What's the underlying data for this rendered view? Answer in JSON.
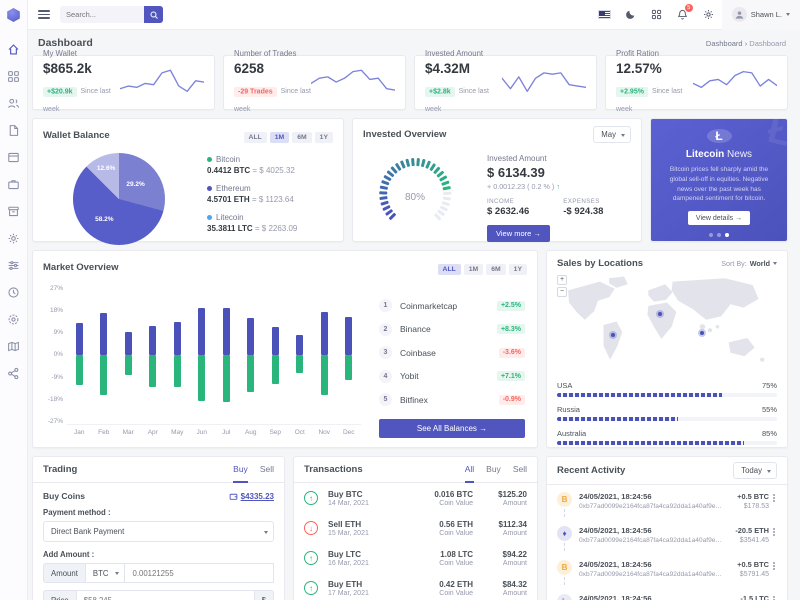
{
  "header": {
    "search_placeholder": "Search...",
    "user_name": "Shawn L.",
    "notification_count": "5"
  },
  "page": {
    "title": "Dashboard",
    "breadcrumb_parent": "Dashboard",
    "breadcrumb_sep": "›",
    "breadcrumb_current": "Dashboard"
  },
  "sidebar": {
    "items": [
      {
        "icon": "home-icon",
        "active": true
      },
      {
        "icon": "apps-grid-icon",
        "active": false
      },
      {
        "icon": "users-icon",
        "active": false
      },
      {
        "icon": "file-icon",
        "active": false
      },
      {
        "icon": "layout-icon",
        "active": false
      },
      {
        "icon": "briefcase-icon",
        "active": false
      },
      {
        "icon": "archive-icon",
        "active": false
      },
      {
        "icon": "gear-icon",
        "active": false
      },
      {
        "icon": "sliders-icon",
        "active": false
      },
      {
        "icon": "clock-icon",
        "active": false
      },
      {
        "icon": "settings-icon",
        "active": false
      },
      {
        "icon": "map-icon",
        "active": false
      },
      {
        "icon": "share-icon",
        "active": false
      }
    ]
  },
  "stats": [
    {
      "label": "My Wallet",
      "value": "$865.2k",
      "badge": "+$20.9k",
      "badge_type": "success",
      "caption": "Since last week"
    },
    {
      "label": "Number of Trades",
      "value": "6258",
      "badge": "-29 Trades",
      "badge_type": "danger",
      "caption": "Since last week"
    },
    {
      "label": "Invested Amount",
      "value": "$4.32M",
      "badge": "+$2.8k",
      "badge_type": "success",
      "caption": "Since last week"
    },
    {
      "label": "Profit Ration",
      "value": "12.57%",
      "badge": "+2.95%",
      "badge_type": "success",
      "caption": "Since last week"
    }
  ],
  "wallet_balance": {
    "title": "Wallet Balance",
    "ranges": [
      "ALL",
      "1M",
      "6M",
      "1Y"
    ],
    "active_range": "1M",
    "legend": [
      {
        "name": "Bitcoin",
        "amount": "0.4412 BTC",
        "eq": "= $ 4025.32",
        "dot_color": "#2ab57d"
      },
      {
        "name": "Ethereum",
        "amount": "4.5701 ETH",
        "eq": "= $ 1123.64",
        "dot_color": "#5156be"
      },
      {
        "name": "Litecoin",
        "amount": "35.3811 LTC",
        "eq": "= $ 2263.09",
        "dot_color": "#4ba6ef"
      }
    ]
  },
  "invested_overview": {
    "title": "Invested Overview",
    "period_selected": "May",
    "amount_label": "Invested Amount",
    "amount": "$ 6134.39",
    "change": "+ 0.0012.23 ( 0.2 % )",
    "change_arrow": "↑",
    "income_label": "INCOME",
    "income": "$ 2632.46",
    "expenses_label": "EXPENSES",
    "expenses": "-$ 924.38",
    "view_more": "View more →"
  },
  "news": {
    "icon_glyph": "Ł",
    "title_coin": "Litecoin",
    "title_suffix": " News",
    "body": "Bitcoin prices fell sharply amid the global sell-off in equities. Negative news over the past week has dampened sentiment for bitcoin.",
    "cta": "View details →",
    "active_dot": 2
  },
  "market_overview": {
    "title": "Market Overview",
    "ranges": [
      "ALL",
      "1M",
      "6M",
      "1Y"
    ],
    "active_range": "ALL",
    "coins": [
      {
        "rank": "1",
        "name": "Coinmarketcap",
        "change": "+2.5%",
        "type": "success"
      },
      {
        "rank": "2",
        "name": "Binance",
        "change": "+8.3%",
        "type": "success"
      },
      {
        "rank": "3",
        "name": "Coinbase",
        "change": "-3.6%",
        "type": "danger"
      },
      {
        "rank": "4",
        "name": "Yobit",
        "change": "+7.1%",
        "type": "success"
      },
      {
        "rank": "5",
        "name": "Bitfinex",
        "change": "-0.9%",
        "type": "danger"
      }
    ],
    "cta": "See All Balances →"
  },
  "sales_locations": {
    "title": "Sales by Locations",
    "sort_label": "Sort By:",
    "sort_value": "World",
    "zoom_in": "+",
    "zoom_out": "−",
    "rows": [
      {
        "name": "USA",
        "pct": "75%"
      },
      {
        "name": "Russia",
        "pct": "55%"
      },
      {
        "name": "Australia",
        "pct": "85%"
      }
    ]
  },
  "trading": {
    "title": "Trading",
    "tabs": [
      "Buy",
      "Sell"
    ],
    "active_tab": "Buy",
    "section_label": "Buy Coins",
    "balance_link": "$4335.23",
    "payment_label": "Payment method :",
    "payment_value": "Direct Bank Payment",
    "add_amount_label": "Add Amount :",
    "amount_prefix": "Amount",
    "amount_currency": "BTC",
    "amount_placeholder": "0.00121255",
    "price_prefix": "Price",
    "price_placeholder": "$58,245",
    "price_suffix": "$"
  },
  "transactions": {
    "title": "Transactions",
    "tabs": [
      "All",
      "Buy",
      "Sell"
    ],
    "active_tab": "All",
    "rows": [
      {
        "dir": "up",
        "name": "Buy BTC",
        "date": "14 Mar, 2021",
        "coin": "0.016 BTC",
        "coin_label": "Coin Value",
        "amount": "$125.20",
        "amount_label": "Amount"
      },
      {
        "dir": "down",
        "name": "Sell ETH",
        "date": "15 Mar, 2021",
        "coin": "0.56 ETH",
        "coin_label": "Coin Value",
        "amount": "$112.34",
        "amount_label": "Amount"
      },
      {
        "dir": "up",
        "name": "Buy LTC",
        "date": "16 Mar, 2021",
        "coin": "1.08 LTC",
        "coin_label": "Coin Value",
        "amount": "$94.22",
        "amount_label": "Amount"
      },
      {
        "dir": "up",
        "name": "Buy ETH",
        "date": "17 Mar, 2021",
        "coin": "0.42 ETH",
        "coin_label": "Coin Value",
        "amount": "$84.32",
        "amount_label": "Amount"
      }
    ]
  },
  "recent_activity": {
    "title": "Recent Activity",
    "period": "Today",
    "rows": [
      {
        "coin": "btc",
        "glyph": "B",
        "datetime": "24/05/2021, 18:24:56",
        "hash": "0xb77ad0099e2164fca87fa4ca92dda1a40af9e05d205e53f...",
        "delta": "+0.5 BTC",
        "value": "$178.53"
      },
      {
        "coin": "eth",
        "glyph": "♦",
        "datetime": "24/05/2021, 18:24:56",
        "hash": "0xb77ad0099e2164fca87fa4ca92dda1a40af9e05d205e53f...",
        "delta": "-20.5 ETH",
        "value": "$3541.45"
      },
      {
        "coin": "btc",
        "glyph": "B",
        "datetime": "24/05/2021, 18:24:56",
        "hash": "0xb77ad0099e2164fca87fa4ca92dda1a40af9e05d205e53f...",
        "delta": "+0.5 BTC",
        "value": "$5791.45"
      },
      {
        "coin": "ltc",
        "glyph": "Ł",
        "datetime": "24/05/2021, 18:24:56",
        "hash": "",
        "delta": "-1.5 LTC",
        "value": ""
      }
    ]
  },
  "chart_data": [
    {
      "id": "wallet-pie",
      "type": "pie",
      "title": "Wallet Balance",
      "slices": [
        {
          "label": "29.2%",
          "value": 29.2,
          "color": "#7b80d0"
        },
        {
          "label": "58.2%",
          "value": 58.2,
          "color": "#575dc9"
        },
        {
          "label": "12.6%",
          "value": 12.6,
          "color": "#b7bae6"
        }
      ]
    },
    {
      "id": "invested-gauge",
      "type": "gauge",
      "value": 80,
      "label": "80%",
      "start_color": "#4a50c0",
      "end_color": "#2ab57d",
      "track_color": "#e9ebf2"
    },
    {
      "id": "market-bars",
      "type": "bar",
      "title": "Market Overview",
      "categories": [
        "Jan",
        "Feb",
        "Mar",
        "Apr",
        "May",
        "Jun",
        "Jul",
        "Aug",
        "Sep",
        "Oct",
        "Nov",
        "Dec"
      ],
      "series": [
        {
          "name": "gain",
          "color": "#4a51b8",
          "values": [
            12,
            16,
            8.5,
            11,
            12.5,
            18,
            18,
            14,
            10.8,
            7.5,
            16.3,
            14.5
          ]
        },
        {
          "name": "loss",
          "color": "#2ab57d",
          "values": [
            -11.7,
            -15.5,
            -8,
            -12.5,
            -12.7,
            -18,
            -18.3,
            -14.5,
            -11.2,
            -7,
            -15.5,
            -10
          ]
        }
      ],
      "ylabels": [
        "27%",
        "18%",
        "9%",
        "0%",
        "-9%",
        "-18%",
        "-27%"
      ],
      "ylim": [
        -27,
        27
      ],
      "grid": false,
      "legend": "none"
    },
    {
      "id": "locations-bars",
      "type": "bar",
      "title": "Sales by Locations",
      "categories": [
        "USA",
        "Russia",
        "Australia"
      ],
      "values": [
        75,
        55,
        85
      ],
      "ylim": [
        0,
        100
      ]
    },
    {
      "id": "sparklines",
      "type": "line",
      "color": "#7c83db",
      "series": [
        {
          "name": "my-wallet",
          "values": [
            3,
            4,
            3.5,
            5,
            4.5,
            9,
            10,
            4,
            2,
            6,
            5.5
          ]
        },
        {
          "name": "number-of-trades",
          "values": [
            5,
            7,
            7.5,
            5.5,
            7,
            9.5,
            10,
            6.5,
            7,
            3,
            2.5
          ]
        },
        {
          "name": "invested-amount",
          "values": [
            7,
            3,
            7.5,
            2,
            7,
            9,
            8.5,
            9,
            4.5,
            4,
            3.5
          ]
        },
        {
          "name": "profit-ration",
          "values": [
            5,
            3.5,
            6,
            6.5,
            4.5,
            8,
            9.5,
            9,
            4,
            6.5,
            4.2
          ]
        }
      ]
    }
  ]
}
